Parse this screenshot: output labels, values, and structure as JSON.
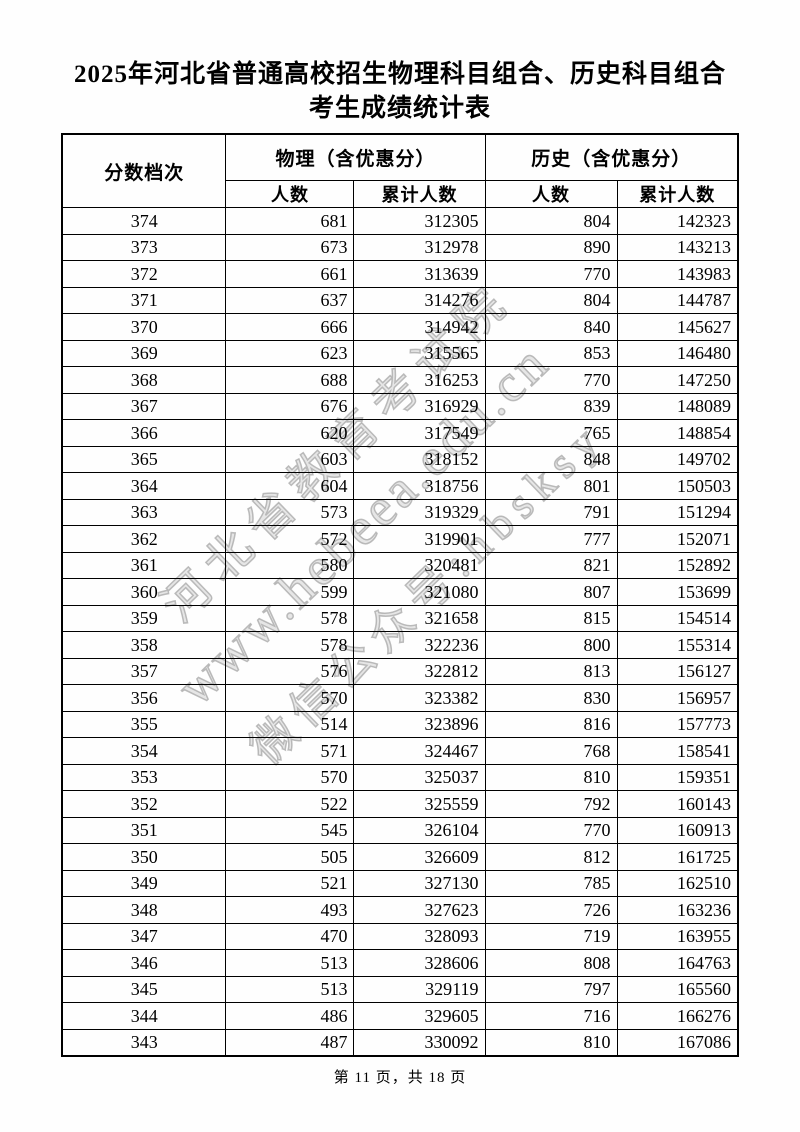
{
  "title": {
    "line1": "2025年河北省普通高校招生物理科目组合、历史科目组合",
    "line2": "考生成绩统计表"
  },
  "watermark": {
    "line1": "河北省教育考试院",
    "line2": "www.hebeea.edu.cn",
    "line3": "微信公众号:hbsksy",
    "color": "#c1c1c1"
  },
  "table": {
    "headers": {
      "score": "分数档次",
      "physics_group": "物理（含优惠分）",
      "history_group": "历史（含优惠分）",
      "count": "人数",
      "cumulative": "累计人数"
    },
    "columns": [
      "score",
      "physics_count",
      "physics_cumulative",
      "history_count",
      "history_cumulative"
    ],
    "rows": [
      [
        374,
        681,
        312305,
        804,
        142323
      ],
      [
        373,
        673,
        312978,
        890,
        143213
      ],
      [
        372,
        661,
        313639,
        770,
        143983
      ],
      [
        371,
        637,
        314276,
        804,
        144787
      ],
      [
        370,
        666,
        314942,
        840,
        145627
      ],
      [
        369,
        623,
        315565,
        853,
        146480
      ],
      [
        368,
        688,
        316253,
        770,
        147250
      ],
      [
        367,
        676,
        316929,
        839,
        148089
      ],
      [
        366,
        620,
        317549,
        765,
        148854
      ],
      [
        365,
        603,
        318152,
        848,
        149702
      ],
      [
        364,
        604,
        318756,
        801,
        150503
      ],
      [
        363,
        573,
        319329,
        791,
        151294
      ],
      [
        362,
        572,
        319901,
        777,
        152071
      ],
      [
        361,
        580,
        320481,
        821,
        152892
      ],
      [
        360,
        599,
        321080,
        807,
        153699
      ],
      [
        359,
        578,
        321658,
        815,
        154514
      ],
      [
        358,
        578,
        322236,
        800,
        155314
      ],
      [
        357,
        576,
        322812,
        813,
        156127
      ],
      [
        356,
        570,
        323382,
        830,
        156957
      ],
      [
        355,
        514,
        323896,
        816,
        157773
      ],
      [
        354,
        571,
        324467,
        768,
        158541
      ],
      [
        353,
        570,
        325037,
        810,
        159351
      ],
      [
        352,
        522,
        325559,
        792,
        160143
      ],
      [
        351,
        545,
        326104,
        770,
        160913
      ],
      [
        350,
        505,
        326609,
        812,
        161725
      ],
      [
        349,
        521,
        327130,
        785,
        162510
      ],
      [
        348,
        493,
        327623,
        726,
        163236
      ],
      [
        347,
        470,
        328093,
        719,
        163955
      ],
      [
        346,
        513,
        328606,
        808,
        164763
      ],
      [
        345,
        513,
        329119,
        797,
        165560
      ],
      [
        344,
        486,
        329605,
        716,
        166276
      ],
      [
        343,
        487,
        330092,
        810,
        167086
      ]
    ]
  },
  "footer": {
    "page_indicator": "第 11 页，共 18 页"
  }
}
